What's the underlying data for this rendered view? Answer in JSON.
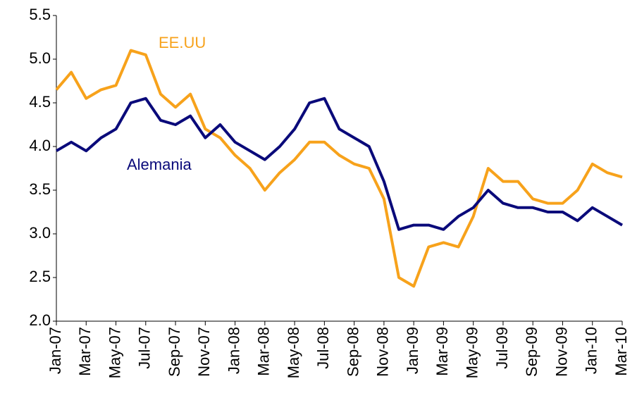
{
  "chart_data": {
    "type": "line",
    "categories": [
      "Jan-07",
      null,
      "Mar-07",
      null,
      "May-07",
      null,
      "Jul-07",
      null,
      "Sep-07",
      null,
      "Nov-07",
      null,
      "Jan-08",
      null,
      "Mar-08",
      null,
      "May-08",
      null,
      "Jul-08",
      null,
      "Sep-08",
      null,
      "Nov-08",
      null,
      "Jan-09",
      null,
      "Mar-09",
      null,
      "May-09",
      null,
      "Jul-09",
      null,
      "Sep-09",
      null,
      "Nov-09",
      null,
      "Jan-10",
      null,
      "Mar-10"
    ],
    "series": [
      {
        "name": "EE.UU",
        "color": "#f7a21b",
        "values": [
          4.65,
          4.85,
          4.55,
          4.65,
          4.7,
          5.1,
          5.05,
          4.6,
          4.45,
          4.6,
          4.2,
          4.1,
          3.9,
          3.75,
          3.5,
          3.7,
          3.85,
          4.05,
          4.05,
          3.9,
          3.8,
          3.75,
          3.4,
          2.5,
          2.4,
          2.85,
          2.9,
          2.85,
          3.2,
          3.75,
          3.6,
          3.6,
          3.4,
          3.35,
          3.35,
          3.5,
          3.8,
          3.7,
          3.65
        ]
      },
      {
        "name": "Alemania",
        "color": "#0a0a7a",
        "values": [
          3.95,
          4.05,
          3.95,
          4.1,
          4.2,
          4.5,
          4.55,
          4.3,
          4.25,
          4.35,
          4.1,
          4.25,
          4.05,
          3.95,
          3.85,
          4.0,
          4.2,
          4.5,
          4.55,
          4.2,
          4.1,
          4.0,
          3.6,
          3.05,
          3.1,
          3.1,
          3.05,
          3.2,
          3.3,
          3.5,
          3.35,
          3.3,
          3.3,
          3.25,
          3.25,
          3.15,
          3.3,
          3.2,
          3.1
        ]
      }
    ],
    "ylim": [
      2.0,
      5.5
    ],
    "yticks": [
      {
        "value": 2,
        "label": "2.0"
      },
      2.5,
      {
        "value": 3,
        "label": "3.0"
      },
      3.5,
      {
        "value": 4,
        "label": "4.0"
      },
      4.5,
      {
        "value": 5,
        "label": "5.0"
      },
      5.5
    ],
    "grid": false
  }
}
